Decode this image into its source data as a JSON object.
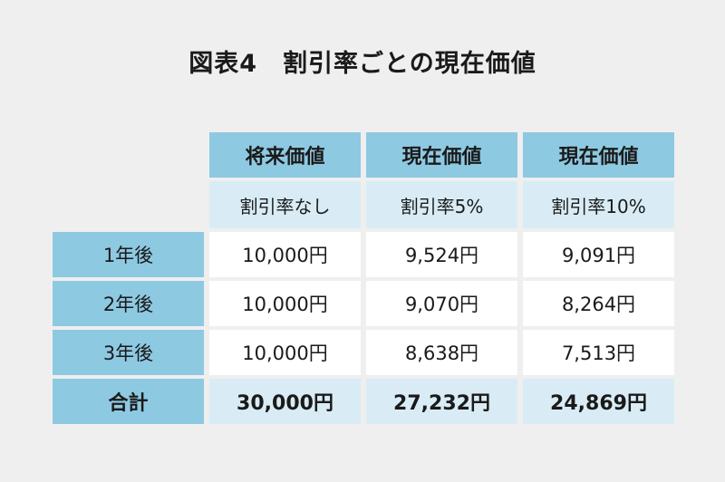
{
  "title": "図表4　割引率ごとの現在価値",
  "columns": [
    {
      "label": "将来価値",
      "sub": "割引率なし"
    },
    {
      "label": "現在価値",
      "sub": "割引率5%"
    },
    {
      "label": "現在価値",
      "sub": "割引率10%"
    }
  ],
  "rows": [
    {
      "label": "1年後",
      "values": [
        "10,000円",
        "9,524円",
        "9,091円"
      ]
    },
    {
      "label": "2年後",
      "values": [
        "10,000円",
        "9,070円",
        "8,264円"
      ]
    },
    {
      "label": "3年後",
      "values": [
        "10,000円",
        "8,638円",
        "7,513円"
      ]
    }
  ],
  "total": {
    "label": "合計",
    "values": [
      "30,000円",
      "27,232円",
      "24,869円"
    ]
  },
  "colors": {
    "background": "#efefef",
    "header_blue": "#8ec9e2",
    "light_blue": "#d9ecf5",
    "cell_white": "#ffffff"
  }
}
